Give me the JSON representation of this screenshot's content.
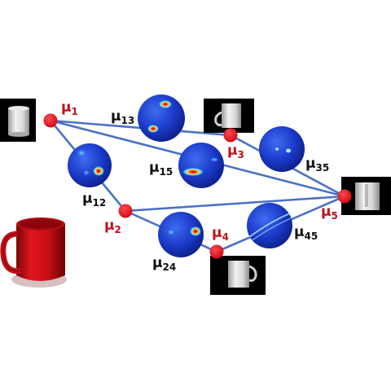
{
  "nodes": [
    {
      "id": "mu1",
      "label": "μ",
      "sub": "1",
      "thumb": "mug-side-plain"
    },
    {
      "id": "mu2",
      "label": "μ",
      "sub": "2"
    },
    {
      "id": "mu3",
      "label": "μ",
      "sub": "3",
      "thumb": "mug-handle-left"
    },
    {
      "id": "mu4",
      "label": "μ",
      "sub": "4",
      "thumb": "mug-handle-right"
    },
    {
      "id": "mu5",
      "label": "μ",
      "sub": "5",
      "thumb": "mug-handle-front"
    }
  ],
  "edges": [
    {
      "id": "mu12",
      "label": "μ",
      "sub": "12"
    },
    {
      "id": "mu13",
      "label": "μ",
      "sub": "13"
    },
    {
      "id": "mu15",
      "label": "μ",
      "sub": "15"
    },
    {
      "id": "mu24",
      "label": "μ",
      "sub": "24"
    },
    {
      "id": "mu35",
      "label": "μ",
      "sub": "35"
    },
    {
      "id": "mu45",
      "label": "μ",
      "sub": "45"
    }
  ],
  "colors": {
    "edge": "#4a72c4",
    "node": "#e0121e",
    "node_label": "#c0101a",
    "edge_label": "#111111",
    "sphere_base": "#1533c8",
    "mug": "#d8141c"
  },
  "icons": {
    "mug": "red-mug-icon"
  }
}
